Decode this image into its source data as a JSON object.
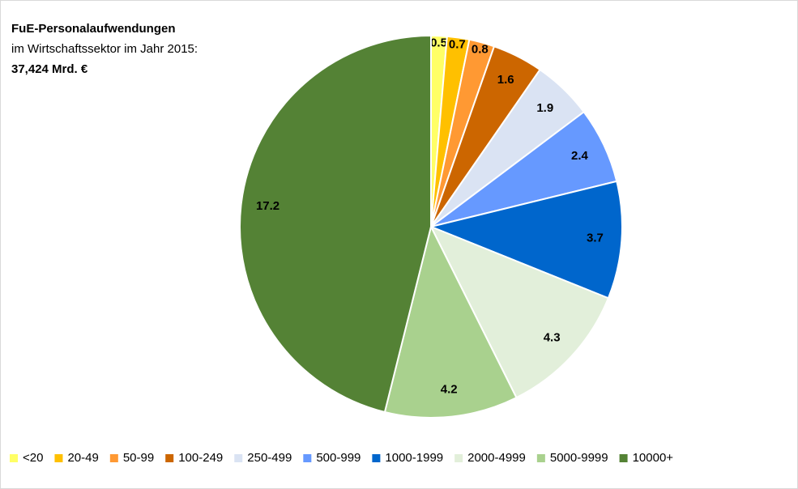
{
  "chart_data": {
    "type": "pie",
    "title": "FuE-Personalaufwendungen",
    "subtitle": "im Wirtschaftssektor im Jahr 2015:",
    "annotation": "37,424 Mrd. €",
    "categories": [
      "<20",
      "20-49",
      "50-99",
      "100-249",
      "250-499",
      "500-999",
      "1000-1999",
      "2000-4999",
      "5000-9999",
      "10000+"
    ],
    "values": [
      0.5,
      0.7,
      0.8,
      1.6,
      1.9,
      2.4,
      3.7,
      4.3,
      4.2,
      17.2
    ],
    "colors": [
      "#ffff66",
      "#ffc000",
      "#ff9933",
      "#cc6600",
      "#dae3f3",
      "#6699ff",
      "#0066cc",
      "#e2efda",
      "#a9d18e",
      "#548235"
    ],
    "legend": "bottom"
  }
}
